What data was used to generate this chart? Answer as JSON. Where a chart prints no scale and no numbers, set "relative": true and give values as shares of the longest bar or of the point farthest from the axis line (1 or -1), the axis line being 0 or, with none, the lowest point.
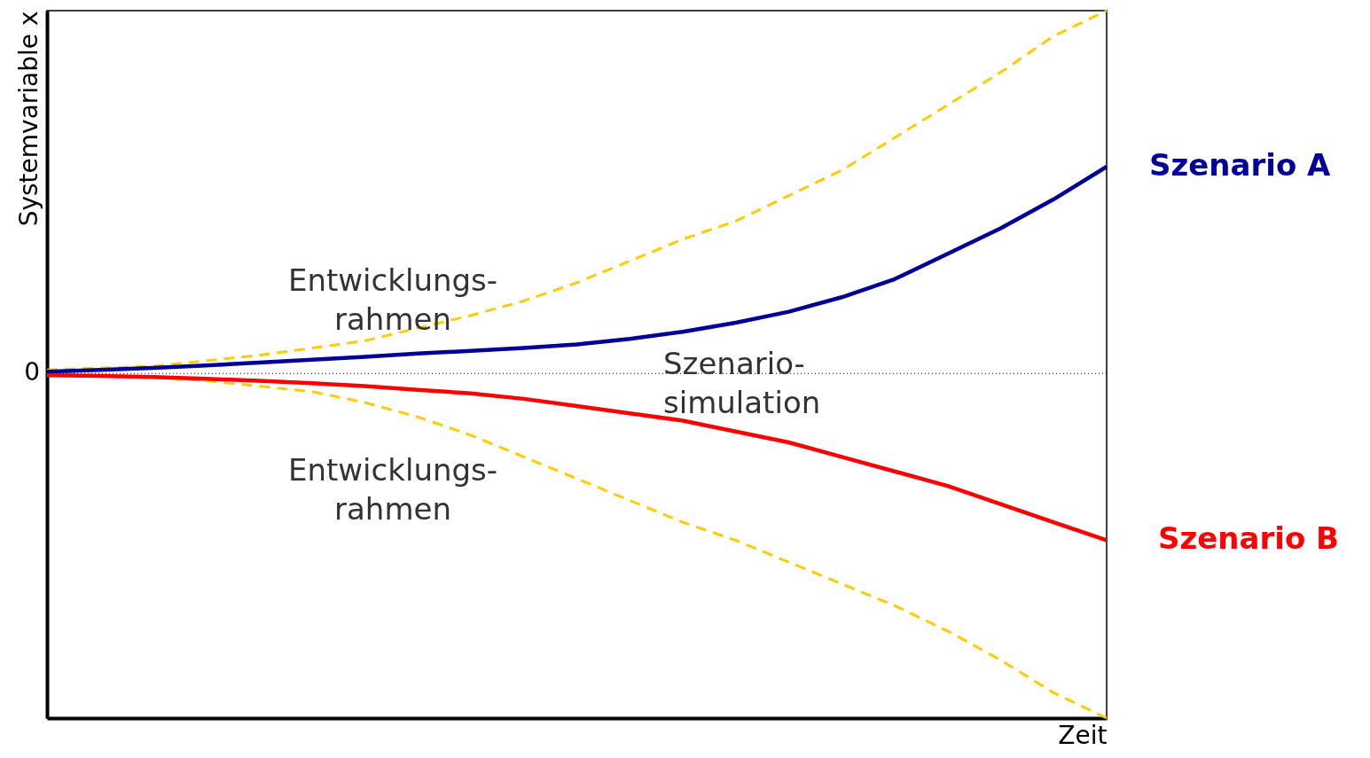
{
  "chart_data": {
    "type": "line",
    "relative": true,
    "xlabel": "Zeit",
    "ylabel": "Systemvariable x",
    "categories": [
      null,
      null,
      null,
      null,
      null,
      null,
      null,
      null,
      null,
      null,
      null,
      null,
      null,
      null,
      null,
      null,
      null,
      null,
      null,
      null,
      null
    ],
    "series": [
      {
        "color": "#ffcc00",
        "line_style": "dashed",
        "values": [
          0.01,
          0.015,
          0.02,
          0.035,
          0.05,
          0.07,
          0.09,
          0.125,
          0.16,
          0.2,
          0.25,
          0.31,
          0.37,
          0.42,
          0.49,
          0.56,
          0.65,
          0.74,
          0.83,
          0.93,
          1.0
        ]
      },
      {
        "color": "#ffcc00",
        "line_style": "dashed",
        "values": [
          0,
          -0.005,
          -0.01,
          -0.02,
          -0.035,
          -0.05,
          -0.08,
          -0.12,
          -0.17,
          -0.23,
          -0.29,
          -0.35,
          -0.41,
          -0.46,
          -0.52,
          -0.58,
          -0.64,
          -0.71,
          -0.79,
          -0.88,
          -0.95
        ]
      },
      {
        "name": "Szenario A",
        "color": "#000099",
        "line_style": "solid",
        "values": [
          0.005,
          0.01,
          0.015,
          0.022,
          0.03,
          0.038,
          0.046,
          0.055,
          0.062,
          0.07,
          0.08,
          0.095,
          0.115,
          0.14,
          0.17,
          0.21,
          0.26,
          0.33,
          0.4,
          0.48,
          0.57
        ]
      },
      {
        "name": "Szenario B",
        "color": "#ff0000",
        "line_style": "solid",
        "values": [
          -0.005,
          -0.007,
          -0.01,
          -0.015,
          -0.02,
          -0.027,
          -0.035,
          -0.045,
          -0.055,
          -0.07,
          -0.09,
          -0.11,
          -0.13,
          -0.16,
          -0.19,
          -0.23,
          -0.27,
          -0.31,
          -0.36,
          -0.41,
          -0.46
        ]
      }
    ],
    "ref_lines": [
      {
        "axis": "y",
        "value": 0,
        "label": "0",
        "line_style": "dotted",
        "color": "#000000"
      }
    ],
    "annotations": [
      "Entwicklungs-\nrahmen",
      "Entwicklungs-\nrahmen",
      "Szenario-\nsimulation"
    ]
  }
}
